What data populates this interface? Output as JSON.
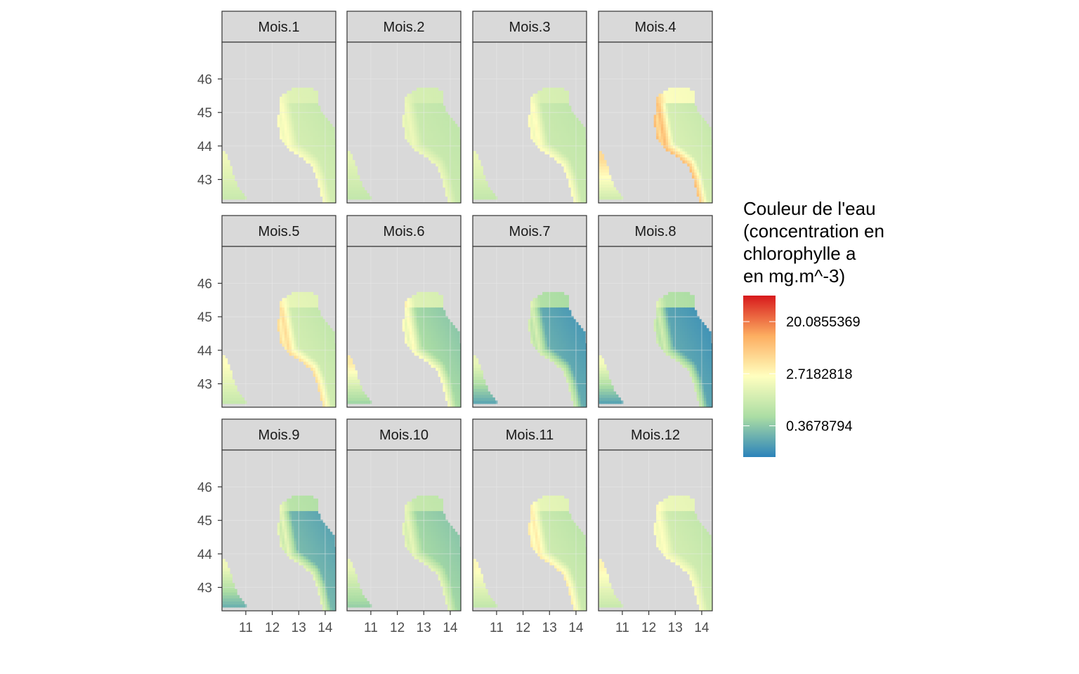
{
  "chart_data": {
    "type": "heatmap",
    "facet_labels": [
      "Mois.1",
      "Mois.2",
      "Mois.3",
      "Mois.4",
      "Mois.5",
      "Mois.6",
      "Mois.7",
      "Mois.8",
      "Mois.9",
      "Mois.10",
      "Mois.11",
      "Mois.12"
    ],
    "x_ticks": [
      11,
      12,
      13,
      14
    ],
    "y_ticks": [
      43,
      44,
      45,
      46
    ],
    "xlim": [
      10.1,
      14.4
    ],
    "ylim": [
      42.3,
      47.1
    ],
    "legend": {
      "title_lines": [
        "Couleur de l'eau",
        "(concentration en",
        "chlorophylle a",
        "en mg.m^-3)"
      ],
      "labels": [
        "20.0855369",
        "2.7182818",
        "0.3678794"
      ],
      "label_log_values": [
        3,
        1,
        -1
      ],
      "log_range": [
        -2.2,
        4.0
      ],
      "placement": "right"
    },
    "colors": {
      "land": "#d9d9d9",
      "strip_fill": "#d9d9d9",
      "panel_border": "#333333",
      "grid": "#ebebeb",
      "scale": [
        "#2b83ba",
        "#abdda4",
        "#ffffbf",
        "#fdae61",
        "#d7191c"
      ]
    },
    "monthly_log_levels": [
      {
        "month": "Mois.1",
        "coast": 0.9,
        "west": 0.6,
        "mid": 0.2,
        "gulf": -0.2
      },
      {
        "month": "Mois.2",
        "coast": 0.6,
        "west": 0.4,
        "mid": 0.0,
        "gulf": -0.3
      },
      {
        "month": "Mois.3",
        "coast": 1.0,
        "west": 0.5,
        "mid": 0.0,
        "gulf": -0.3
      },
      {
        "month": "Mois.4",
        "coast": 2.2,
        "west": 1.6,
        "mid": 0.3,
        "gulf": -0.2
      },
      {
        "month": "Mois.5",
        "coast": 1.6,
        "west": 0.9,
        "mid": 0.2,
        "gulf": -0.3
      },
      {
        "month": "Mois.6",
        "coast": 1.0,
        "west": 1.3,
        "mid": -0.5,
        "gulf": -1.1
      },
      {
        "month": "Mois.7",
        "coast": 0.2,
        "west": 0.5,
        "mid": -1.3,
        "gulf": -1.9
      },
      {
        "month": "Mois.8",
        "coast": 0.1,
        "west": 0.7,
        "mid": -1.4,
        "gulf": -2.0
      },
      {
        "month": "Mois.9",
        "coast": 0.5,
        "west": 0.6,
        "mid": -1.1,
        "gulf": -1.7
      },
      {
        "month": "Mois.10",
        "coast": 0.5,
        "west": 0.5,
        "mid": -0.6,
        "gulf": -1.1
      },
      {
        "month": "Mois.11",
        "coast": 1.3,
        "west": 1.0,
        "mid": 0.1,
        "gulf": -0.4
      },
      {
        "month": "Mois.12",
        "coast": 0.9,
        "west": 1.1,
        "mid": 0.2,
        "gulf": -0.3
      }
    ]
  }
}
